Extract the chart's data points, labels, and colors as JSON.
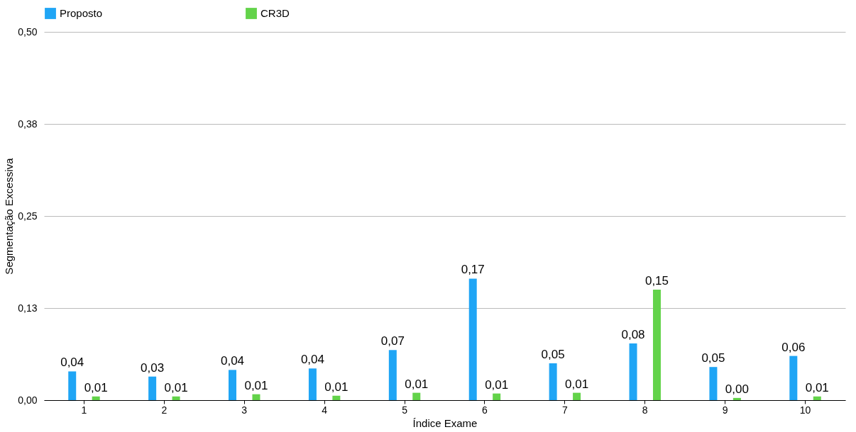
{
  "chart_data": {
    "type": "bar",
    "xlabel": "Índice Exame",
    "ylabel": "Segmentação Excessiva",
    "categories": [
      "1",
      "2",
      "3",
      "4",
      "5",
      "6",
      "7",
      "8",
      "9",
      "10"
    ],
    "series": [
      {
        "name": "Proposto",
        "color": "#1fa5f5",
        "values": [
          0.039,
          0.032,
          0.041,
          0.043,
          0.068,
          0.165,
          0.05,
          0.077,
          0.045,
          0.06
        ],
        "value_labels": [
          "0,04",
          "0,03",
          "0,04",
          "0,04",
          "0,07",
          "0,17",
          "0,05",
          "0,08",
          "0,05",
          "0,06"
        ]
      },
      {
        "name": "CR3D",
        "color": "#63d34a",
        "values": [
          0.005,
          0.005,
          0.008,
          0.006,
          0.01,
          0.009,
          0.01,
          0.15,
          0.003,
          0.005
        ],
        "value_labels": [
          "0,01",
          "0,01",
          "0,01",
          "0,01",
          "0,01",
          "0,01",
          "0,01",
          "0,15",
          "0,00",
          "0,01"
        ]
      }
    ],
    "ylim": [
      0,
      0.5
    ],
    "yticks": [
      {
        "value": 0,
        "label": "0,00"
      },
      {
        "value": 0.125,
        "label": "0,13"
      },
      {
        "value": 0.25,
        "label": "0,25"
      },
      {
        "value": 0.375,
        "label": "0,38"
      },
      {
        "value": 0.5,
        "label": "0,50"
      }
    ],
    "grid": "y",
    "legend": "top"
  }
}
